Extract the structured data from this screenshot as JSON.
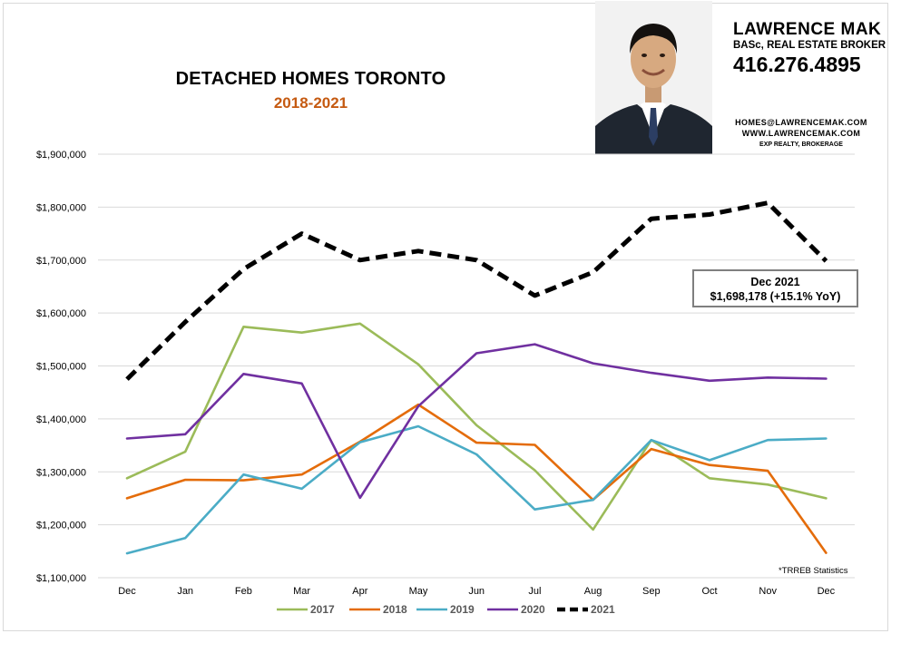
{
  "header": {
    "title": "DETACHED HOMES TORONTO",
    "subtitle": "2018-2021"
  },
  "agent": {
    "name": "LAWRENCE MAK",
    "credentials": "BASc, REAL ESTATE BROKER",
    "phone": "416.276.4895",
    "email": "HOMES@LAWRENCEMAK.COM",
    "website": "WWW.LAWRENCEMAK.COM",
    "brokerage": "EXP REALTY, BROKERAGE"
  },
  "callout": {
    "line1": "Dec 2021",
    "line2": "$1,698,178  (+15.1%  YoY)"
  },
  "source_note": "*TRREB Statistics",
  "chart_data": {
    "type": "line",
    "categories": [
      "Dec",
      "Jan",
      "Feb",
      "Mar",
      "Apr",
      "May",
      "Jun",
      "Jul",
      "Aug",
      "Sep",
      "Oct",
      "Nov",
      "Dec"
    ],
    "ylim": [
      1100000,
      1900000
    ],
    "yticks": [
      1100000,
      1200000,
      1300000,
      1400000,
      1500000,
      1600000,
      1700000,
      1800000,
      1900000
    ],
    "ytick_labels": [
      "$1,100,000",
      "$1,200,000",
      "$1,300,000",
      "$1,400,000",
      "$1,500,000",
      "$1,600,000",
      "$1,700,000",
      "$1,800,000",
      "$1,900,000"
    ],
    "grid": true,
    "legend": "bottom",
    "series": [
      {
        "name": "2017",
        "color": "#9bbb59",
        "dashed": false,
        "values": [
          1288000,
          1338000,
          1574000,
          1563000,
          1580000,
          1503000,
          1388000,
          1303000,
          1191000,
          1360000,
          1288000,
          1276000,
          1250000
        ]
      },
      {
        "name": "2018",
        "color": "#e46c0a",
        "dashed": false,
        "values": [
          1250000,
          1285000,
          1284000,
          1295000,
          1357000,
          1427000,
          1355000,
          1351000,
          1247000,
          1343000,
          1313000,
          1302000,
          1147000
        ]
      },
      {
        "name": "2019",
        "color": "#4bacc6",
        "dashed": false,
        "values": [
          1146000,
          1175000,
          1295000,
          1268000,
          1356000,
          1386000,
          1333000,
          1229000,
          1247000,
          1360000,
          1322000,
          1360000,
          1363000
        ]
      },
      {
        "name": "2020",
        "color": "#7030a0",
        "dashed": false,
        "values": [
          1363000,
          1371000,
          1485000,
          1467000,
          1251000,
          1424000,
          1524000,
          1541000,
          1505000,
          1487000,
          1472000,
          1478000,
          1476000
        ]
      },
      {
        "name": "2021",
        "color": "#000000",
        "dashed": true,
        "values": [
          1475000,
          1583000,
          1683000,
          1750000,
          1700000,
          1717000,
          1700000,
          1633000,
          1677000,
          1778000,
          1786000,
          1808000,
          1698178
        ]
      }
    ]
  }
}
